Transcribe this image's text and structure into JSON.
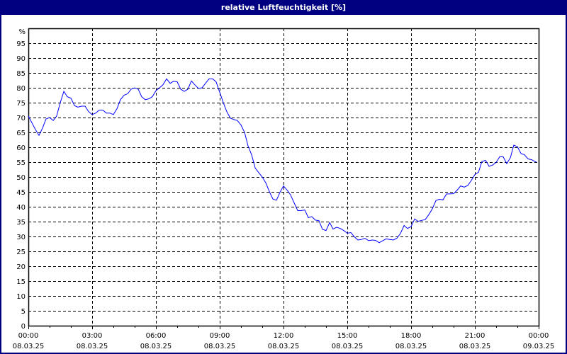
{
  "window": {
    "title": "relative Luftfeuchtigkeit [%]"
  },
  "chart_data": {
    "type": "line",
    "title": "relative Luftfeuchtigkeit [%]",
    "ylabel": "%",
    "ylim": [
      0,
      100
    ],
    "yticks": [
      0,
      5,
      10,
      15,
      20,
      25,
      30,
      35,
      40,
      45,
      50,
      55,
      60,
      65,
      70,
      75,
      80,
      85,
      90,
      95
    ],
    "xlim_hours": [
      0,
      24
    ],
    "xticks": [
      {
        "time": "00:00",
        "date": "08.03.25"
      },
      {
        "time": "03:00",
        "date": "08.03.25"
      },
      {
        "time": "06:00",
        "date": "08.03.25"
      },
      {
        "time": "09:00",
        "date": "08.03.25"
      },
      {
        "time": "12:00",
        "date": "08.03.25"
      },
      {
        "time": "15:00",
        "date": "08.03.25"
      },
      {
        "time": "18:00",
        "date": "08.03.25"
      },
      {
        "time": "21:00",
        "date": "08.03.25"
      },
      {
        "time": "00:00",
        "date": "09.03.25"
      }
    ],
    "grid": true,
    "line_color": "#0000ff",
    "series": [
      {
        "x_hours": [
          0,
          0.33,
          0.5,
          0.67,
          0.83,
          1,
          1.17,
          1.33,
          1.5,
          1.67,
          1.83,
          2,
          2.17,
          2.33,
          2.5,
          2.67,
          2.83,
          3,
          3.17,
          3.33,
          3.5,
          3.67,
          3.83,
          4,
          4.17,
          4.33,
          4.5,
          4.67,
          4.83,
          5,
          5.17,
          5.33,
          5.5,
          5.67,
          5.83,
          6,
          6.17,
          6.33,
          6.5,
          6.67,
          6.83,
          7,
          7.17,
          7.33,
          7.5,
          7.67,
          7.83,
          8,
          8.17,
          8.33,
          8.5,
          8.67,
          8.83,
          9,
          9.17,
          9.33,
          9.5,
          9.67,
          9.83,
          10,
          10.17,
          10.33,
          10.5,
          10.67,
          10.83,
          11,
          11.17,
          11.33,
          11.5,
          11.67,
          11.83,
          12,
          12.17,
          12.33,
          12.5,
          12.67,
          12.83,
          13,
          13.17,
          13.33,
          13.5,
          13.67,
          13.83,
          14,
          14.17,
          14.33,
          14.5,
          14.67,
          14.83,
          15,
          15.17,
          15.33,
          15.5,
          15.67,
          15.83,
          16,
          16.17,
          16.33,
          16.5,
          16.67,
          16.83,
          17,
          17.17,
          17.33,
          17.5,
          17.67,
          17.83,
          18,
          18.17,
          18.33,
          18.5,
          18.67,
          18.83,
          19,
          19.17,
          19.33,
          19.5,
          19.67,
          19.83,
          20,
          20.17,
          20.33,
          20.5,
          20.67,
          20.83,
          21,
          21.17,
          21.33,
          21.5,
          21.67,
          21.83,
          22,
          22.17,
          22.33,
          22.5,
          22.67,
          22.83,
          23,
          23.17,
          23.33,
          23.5,
          23.67,
          23.83,
          23.9
        ],
        "values": [
          70.5,
          66,
          64,
          66.5,
          69.5,
          70,
          69,
          70.5,
          75,
          78.8,
          77,
          76.5,
          74,
          73.5,
          73.8,
          73.8,
          72,
          71,
          71.5,
          72.5,
          72.5,
          71.5,
          71.5,
          71,
          73,
          76,
          77.5,
          78,
          79.5,
          80,
          79.5,
          77,
          76,
          76.3,
          77,
          79,
          80,
          81,
          83,
          81.5,
          82.2,
          82,
          79.5,
          78.8,
          79.5,
          82.3,
          81,
          79.8,
          80,
          81.5,
          83,
          83,
          82,
          78.5,
          75,
          72,
          69.8,
          69.3,
          69,
          67.5,
          65,
          60.5,
          57.5,
          53,
          51.5,
          50,
          48,
          45.2,
          42.6,
          42.2,
          44.8,
          47,
          45.6,
          44,
          41.3,
          38.7,
          38.7,
          38.9,
          36.3,
          36.7,
          35.5,
          35.3,
          32.4,
          32,
          34.7,
          32.5,
          33.1,
          32.7,
          32,
          31.1,
          31.3,
          29.9,
          28.8,
          29,
          29.4,
          28.6,
          28.8,
          28.7,
          27.9,
          28.6,
          29.2,
          29,
          28.8,
          29.4,
          31,
          33.7,
          32.7,
          33.3,
          35.9,
          35.1,
          35.4,
          35.7,
          37.3,
          39.3,
          42.1,
          42.5,
          42.3,
          44.3,
          44.3,
          44.4,
          45.6,
          47,
          46.6,
          47.2,
          48.8,
          50.8,
          51.6,
          55.2,
          55.6,
          53.6,
          54,
          54.9,
          56.8,
          56.8,
          54.5,
          56.5,
          60.7,
          60.2,
          57.9,
          57.5,
          56.1,
          55.8,
          55.2,
          55
        ]
      }
    ]
  }
}
